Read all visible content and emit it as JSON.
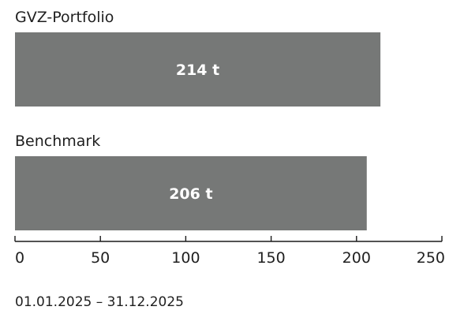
{
  "colors": {
    "bar": "#767877",
    "axis": "#1a1a1a",
    "bar_label": "#ffffff",
    "text": "#1f1f1f"
  },
  "chart_data": {
    "type": "bar",
    "orientation": "horizontal",
    "categories": [
      "GVZ-Portfolio",
      "Benchmark"
    ],
    "values": [
      214,
      206
    ],
    "value_labels": [
      "214 t",
      "206 t"
    ],
    "unit": "t",
    "xlim": [
      0,
      250
    ],
    "xticks": [
      0,
      50,
      100,
      150,
      200,
      250
    ],
    "grid": false,
    "legend": "none",
    "period": "01.01.2025 – 31.12.2025"
  }
}
